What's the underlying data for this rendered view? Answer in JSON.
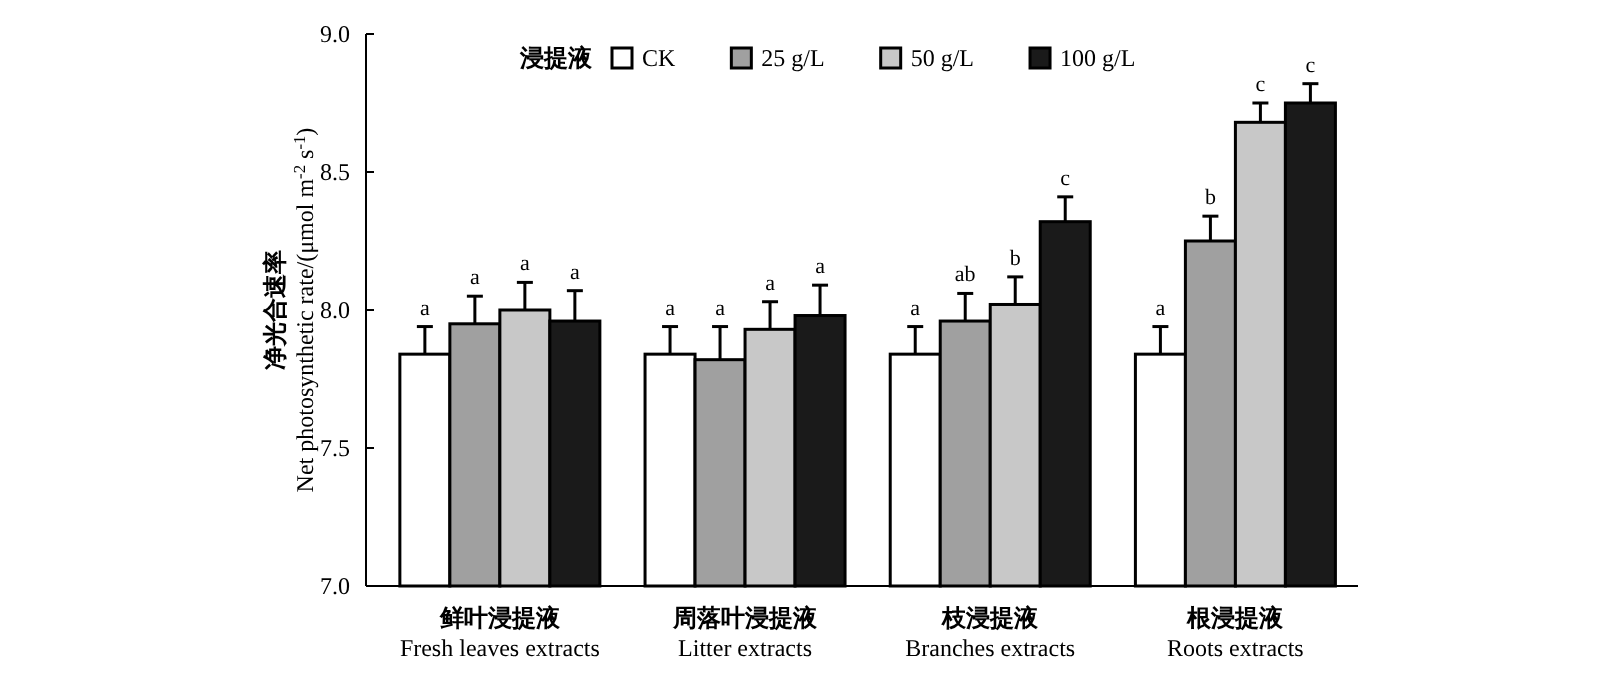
{
  "chart_data": {
    "type": "bar",
    "ylabel": "净光合速率\nNet photosynthetic rate/(μmol m$^{-2}$ s$^{-1}$)",
    "legend_title": "浸提液",
    "legend": "top",
    "categories": [
      "鲜叶浸提液\nFresh leaves extracts",
      "周落叶浸提液\nLitter extracts",
      "枝浸提液\nBranches extracts",
      "根浸提液\nRoots extracts"
    ],
    "ylim": [
      7.0,
      9.0
    ],
    "yticks": [
      {
        "value": 7.0,
        "label": "7.0"
      },
      {
        "value": 7.5,
        "label": "7.5"
      },
      {
        "value": 8.0,
        "label": "8.0"
      },
      {
        "value": 8.5,
        "label": "8.5"
      },
      {
        "value": 9.0,
        "label": "9.0"
      }
    ],
    "series": [
      {
        "name": "CK",
        "color": "#ffffff",
        "values": [
          7.84,
          7.84,
          7.84,
          7.84
        ],
        "errors": [
          [
            7.84,
            7.94
          ],
          [
            7.84,
            7.94
          ],
          [
            7.84,
            7.94
          ],
          [
            7.84,
            7.94
          ]
        ],
        "value_labels": [
          "a",
          "a",
          "a",
          "a"
        ]
      },
      {
        "name": "25 g/L",
        "color": "#a0a0a0",
        "values": [
          7.95,
          7.82,
          7.96,
          8.25
        ],
        "errors": [
          [
            7.95,
            8.05
          ],
          [
            7.82,
            7.94
          ],
          [
            7.96,
            8.06
          ],
          [
            8.25,
            8.34
          ]
        ],
        "value_labels": [
          "a",
          "a",
          "ab",
          "b"
        ]
      },
      {
        "name": "50 g/L",
        "color": "#c8c8c8",
        "values": [
          8.0,
          7.93,
          8.02,
          8.68
        ],
        "errors": [
          [
            8.0,
            8.1
          ],
          [
            7.93,
            8.03
          ],
          [
            8.02,
            8.12
          ],
          [
            8.68,
            8.75
          ]
        ],
        "value_labels": [
          "a",
          "a",
          "b",
          "c"
        ]
      },
      {
        "name": "100 g/L",
        "color": "#1a1a1a",
        "values": [
          7.96,
          7.98,
          8.32,
          8.75
        ],
        "errors": [
          [
            7.96,
            8.07
          ],
          [
            7.98,
            8.09
          ],
          [
            8.32,
            8.41
          ],
          [
            8.75,
            8.82
          ]
        ],
        "value_labels": [
          "a",
          "a",
          "c",
          "c"
        ]
      }
    ]
  }
}
